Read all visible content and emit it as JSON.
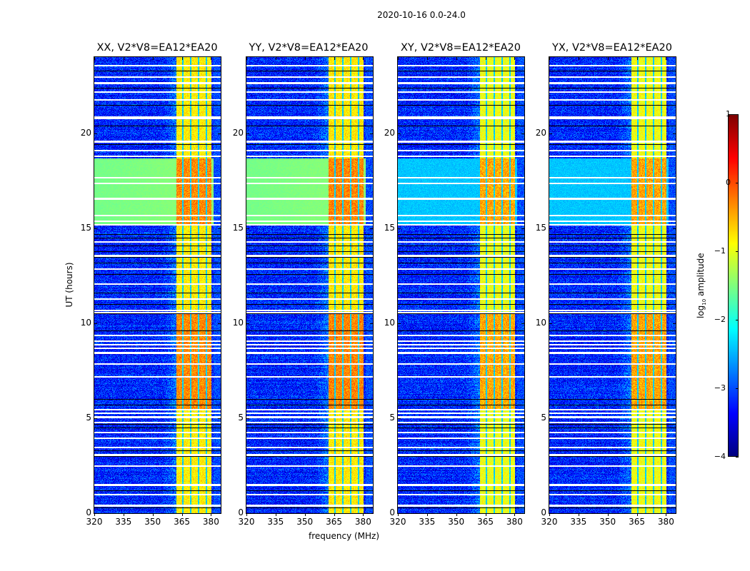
{
  "suptitle": "2020-10-16 0.0-24.0",
  "chart_data": {
    "type": "heatmap",
    "title": "2020-10-16 0.0-24.0",
    "xlabel": "frequency (MHz)",
    "ylabel": "UT (hours)",
    "xlim": [
      320,
      385
    ],
    "ylim": [
      0,
      24
    ],
    "xticks": [
      320,
      335,
      350,
      365,
      380
    ],
    "yticks": [
      0,
      5,
      10,
      15,
      20
    ],
    "panels": [
      {
        "title": "XX, V2*V8=EA12*EA20",
        "pol": "XX"
      },
      {
        "title": "YY, V2*V8=EA12*EA20",
        "pol": "YY"
      },
      {
        "title": "XY, V2*V8=EA12*EA20",
        "pol": "XY"
      },
      {
        "title": "YX, V2*V8=EA12*EA20",
        "pol": "YX"
      }
    ],
    "colorbar": {
      "label": "log10 amplitude",
      "label_main": "log",
      "label_sub": "10",
      "label_rest": " amplitude",
      "range": [
        -4,
        1
      ],
      "ticks": [
        1,
        0,
        -1,
        -2,
        -3,
        -4
      ],
      "tick_labels": [
        "1",
        "0",
        "−1",
        "−2",
        "−3",
        "−4"
      ],
      "colormap": "jet"
    },
    "features": {
      "bright_band_MHz": [
        362,
        380
      ],
      "band_notches_MHz": [
        365.5,
        369.5,
        373.5,
        377.5
      ],
      "elevated_period_UT": [
        15.2,
        18.7
      ],
      "blank_rows_UT": [
        0.45,
        1.0,
        1.5,
        1.55,
        2.5,
        3.1,
        3.5,
        4.0,
        4.3,
        4.8,
        5.1,
        5.3,
        5.5,
        7.2,
        7.9,
        8.5,
        8.7,
        8.9,
        9.1,
        9.4,
        10.6,
        10.7,
        11.3,
        12.1,
        12.9,
        13.6,
        14.3,
        15.2,
        15.4,
        15.7,
        16.6,
        17.4,
        17.7,
        18.8,
        19.1,
        19.6,
        20.8,
        20.9,
        21.8,
        22.2,
        22.7,
        23.0,
        23.6
      ],
      "flagged_rows_UT": [
        0.3,
        1.2,
        3.0,
        3.3,
        4.5,
        4.7,
        5.7,
        6.0,
        9.6,
        10.5,
        11.0,
        11.6,
        12.6,
        13.2,
        13.5,
        13.8,
        14.1,
        14.5,
        14.7,
        19.4,
        20.4,
        21.5,
        22.4,
        23.3
      ]
    }
  }
}
